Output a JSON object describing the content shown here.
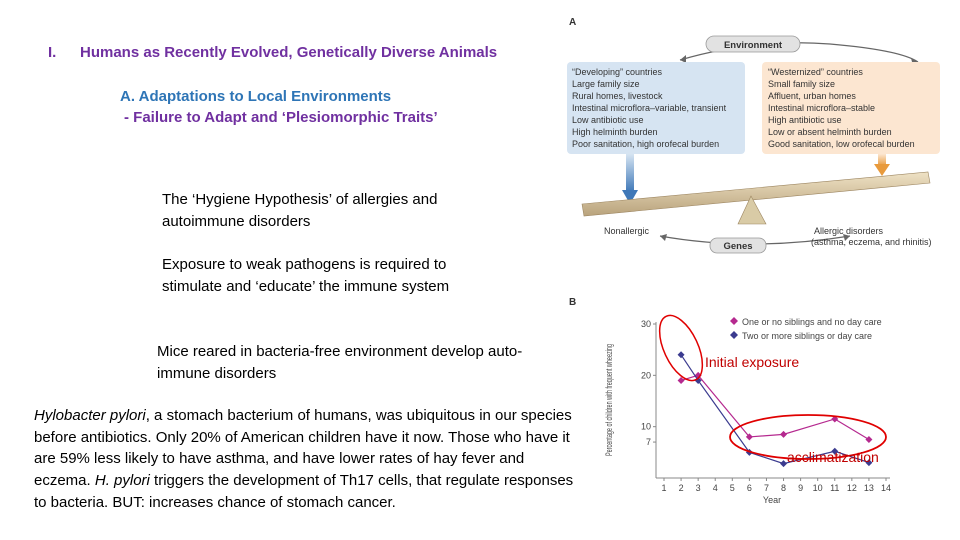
{
  "heading": {
    "number": "I.",
    "title": "Humans as Recently Evolved, Genetically Diverse Animals"
  },
  "subheading_a": "A. Adaptations to Local Environments",
  "subheading_b": "- Failure to Adapt and ‘Plesiomorphic Traits’",
  "paragraphs": {
    "hygiene": "The ‘Hygiene Hypothesis’ of allergies and autoimmune disorders",
    "exposure": "Exposure to weak pathogens is required to stimulate and ‘educate’ the immune system",
    "mice": "Mice reared in bacteria-free environment develop auto-immune disorders",
    "hp_italic": "Hylobacter pylori",
    "hp_1": ", a stomach bacterium of humans, was ubiquitous in our species before antibiotics.  Only 20% of American children have it now. Those who have it are 59% less likely to have asthma, and have lower rates of hay fever and eczema. ",
    "hp_italic2": "H. pylori",
    "hp_2": " triggers the development of Th17 cells, that regulate responses to bacteria.  BUT: increases chance of stomach cancer."
  },
  "figure_a": {
    "label": "A",
    "environment": "Environment",
    "genes": "Genes",
    "left_box": [
      "“Developing” countries",
      "Large family size",
      "Rural homes, livestock",
      "Intestinal microflora–variable, transient",
      "Low antibiotic use",
      "High helminth burden",
      "Poor sanitation, high orofecal burden"
    ],
    "right_box": [
      "“Westernized” countries",
      "Small family size",
      "Affluent, urban homes",
      "Intestinal microflora–stable",
      "High antibiotic use",
      "Low or absent helminth burden",
      "Good sanitation, low orofecal burden"
    ],
    "nonallergic": "Nonallergic",
    "allergic_1": "Allergic disorders",
    "allergic_2": "(asthma, eczema, and rhinitis)",
    "left_box_color": "#d6e4f2",
    "right_box_color": "#fce6d1"
  },
  "figure_b": {
    "label": "B",
    "annot_initial": "Initial exposure",
    "annot_acclim": "acclimatization",
    "ellipse_color": "#e00000"
  },
  "chart_data": {
    "type": "line",
    "xlabel": "Year",
    "ylabel": "Percentage of children with frequent wheezing",
    "x_ticks": [
      1,
      2,
      3,
      4,
      5,
      6,
      7,
      8,
      9,
      10,
      11,
      12,
      13,
      14
    ],
    "y_ticks": [
      7,
      10,
      20,
      30
    ],
    "ylim": [
      0,
      30
    ],
    "series": [
      {
        "name": "One or no siblings and no day care",
        "color": "#b5298f",
        "x": [
          2,
          3,
          6,
          8,
          11,
          13
        ],
        "y": [
          19,
          20,
          8,
          8.5,
          11.5,
          7.5
        ]
      },
      {
        "name": "Two or more siblings or day care",
        "color": "#3b3b8f",
        "x": [
          2,
          3,
          6,
          8,
          11,
          13
        ],
        "y": [
          24,
          19,
          5,
          2.8,
          5.2,
          3
        ]
      }
    ]
  }
}
